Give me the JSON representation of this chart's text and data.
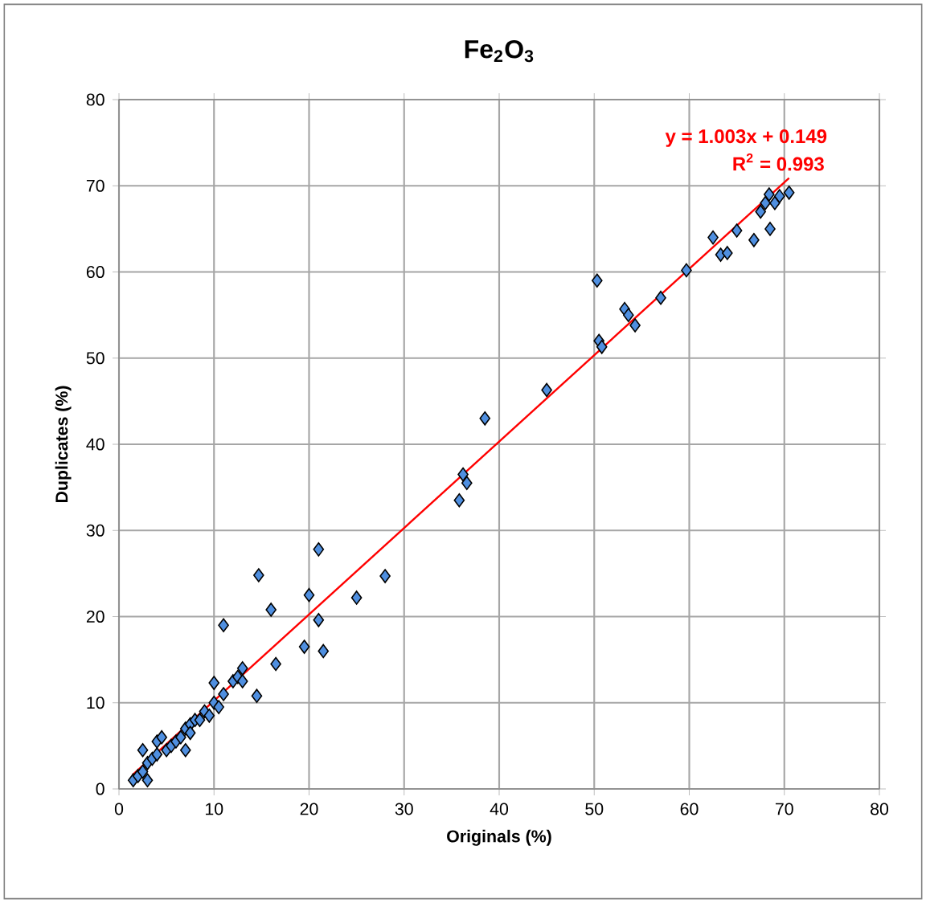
{
  "chart_data": {
    "type": "scatter",
    "title": "Fe$_{2}$O$_{3}$",
    "xlabel": "Originals (%)",
    "ylabel": "Duplicates (%)",
    "xlim": [
      0,
      80
    ],
    "ylim": [
      0,
      80
    ],
    "xticks": [
      0,
      10,
      20,
      30,
      40,
      50,
      60,
      70,
      80
    ],
    "yticks": [
      0,
      10,
      20,
      30,
      40,
      50,
      60,
      70,
      80
    ],
    "grid": true,
    "marker": "diamond",
    "annotations": [
      {
        "text": "y = 1.003x + 0.149",
        "x": 70.5,
        "y": 70.9
      },
      "R$^{2}$ = 0.993"
    ],
    "series": [
      {
        "color": "#4f8fe0",
        "x": [
          1.5,
          2,
          2.5,
          3,
          2.5,
          3,
          3.5,
          4,
          4,
          4.5,
          5,
          5.5,
          6,
          6.5,
          7,
          7,
          7.5,
          8,
          7.5,
          8.5,
          9,
          9.5,
          10,
          10,
          10.5,
          11,
          11,
          12,
          12.5,
          13,
          13,
          14.5,
          14.7,
          16,
          16.5,
          19.5,
          20,
          21,
          21,
          21.5,
          25,
          28,
          35.8,
          36.2,
          36.6,
          38.5,
          45,
          50.3,
          50.5,
          50.8,
          53.2,
          53.6,
          54.3,
          57,
          59.7,
          62.5,
          63.3,
          64,
          65,
          66.8,
          67.5,
          68,
          68.4,
          68.5,
          69,
          69.5,
          70.5
        ],
        "values": [
          1,
          1.5,
          2,
          1,
          4.5,
          3,
          3.5,
          4,
          5.5,
          6,
          4.5,
          5,
          5.5,
          6,
          7,
          4.5,
          7.5,
          8,
          6.5,
          8,
          9,
          8.5,
          10,
          12.3,
          9.5,
          11,
          19,
          12.5,
          13,
          14,
          12.5,
          10.8,
          24.8,
          20.8,
          14.5,
          16.5,
          22.5,
          27.8,
          19.6,
          16,
          22.2,
          24.7,
          33.5,
          36.5,
          35.5,
          43,
          46.3,
          59,
          52,
          51.3,
          55.7,
          55,
          53.8,
          57,
          60.2,
          64,
          62,
          62.2,
          64.8,
          63.7,
          67,
          68,
          69,
          65,
          68,
          68.8,
          69.2
        ]
      },
      {
        "type": "line",
        "color": "#ff0000",
        "marker": "none",
        "x": [
          1.4,
          70.5
        ],
        "values": [
          1.6,
          70.9
        ]
      }
    ]
  }
}
